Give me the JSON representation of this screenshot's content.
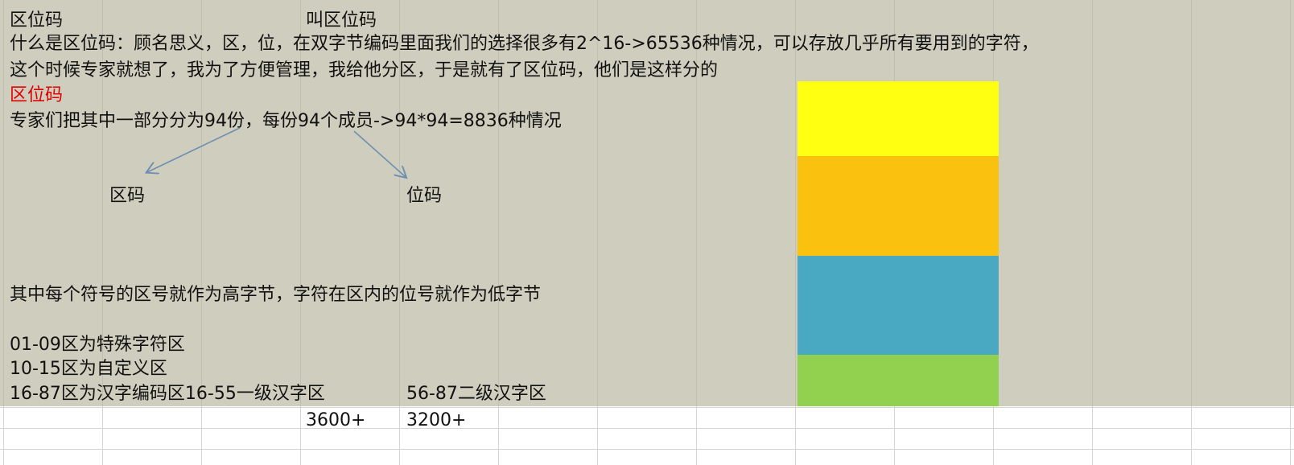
{
  "lines": {
    "title": "区位码",
    "title2": "叫区位码",
    "line1": "什么是区位码：顾名思义，区，位，在双字节编码里面我们的选择很多有2^16->65536种情况，可以存放几乎所有要用到的字符，",
    "line2": "这个时候专家就想了，我为了方便管理，我给他分区，于是就有了区位码，他们是这样分的",
    "red_title": "区位码",
    "line3": "专家们把其中一部分分为94份，每份94个成员->94*94=8836种情况",
    "qu_label": "区码",
    "wei_label": "位码",
    "line4": "其中每个符号的区号就作为高字节，字符在区内的位号就作为低字节",
    "line5": "01-09区为特殊字符区",
    "line6": "10-15区为自定义区",
    "line7a": "16-87区为汉字编码区16-55一级汉字区",
    "line7b": "56-87二级汉字区",
    "count1": "3600+",
    "count2": "3200+"
  },
  "colors": {
    "background_fill": "#cfcebe",
    "red_text": "#e00000",
    "block_yellow": "#ffff11",
    "block_orange": "#fac20f",
    "block_blue": "#4aa9c2",
    "block_green": "#92d04f",
    "arrow": "#6f8fb0"
  }
}
